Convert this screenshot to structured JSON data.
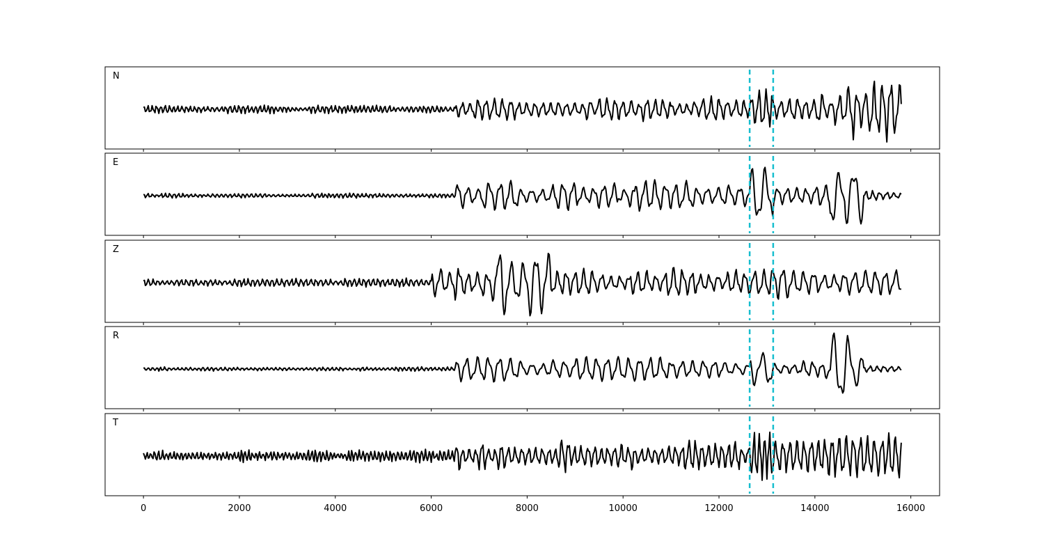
{
  "chart_data": {
    "type": "line",
    "title": "",
    "xlabel": "",
    "ylabel": "",
    "xlim": [
      -800,
      16600
    ],
    "xticks": [
      0,
      2000,
      4000,
      6000,
      8000,
      10000,
      12000,
      14000,
      16000
    ],
    "xtick_labels": [
      "0",
      "2000",
      "4000",
      "6000",
      "8000",
      "10000",
      "12000",
      "14000",
      "16000"
    ],
    "x_range": [
      0,
      15800
    ],
    "grid": false,
    "legend": "none",
    "trace_color": "#000000",
    "pick_color": "#17becf",
    "picks": [
      12640,
      13130
    ],
    "series": [
      {
        "name": "N",
        "envelope": [
          {
            "from": 0,
            "to": 6500,
            "amp": 0.1,
            "period": 90
          },
          {
            "from": 6500,
            "to": 12640,
            "amp": 0.3,
            "period": 170
          },
          {
            "from": 12640,
            "to": 13130,
            "amp": 0.85,
            "period": 150
          },
          {
            "from": 13130,
            "to": 14400,
            "amp": 0.4,
            "period": 170
          },
          {
            "from": 14400,
            "to": 15800,
            "amp": 0.75,
            "period": 180
          }
        ]
      },
      {
        "name": "E",
        "envelope": [
          {
            "from": 0,
            "to": 6500,
            "amp": 0.06,
            "period": 90
          },
          {
            "from": 6500,
            "to": 12640,
            "amp": 0.35,
            "period": 220
          },
          {
            "from": 12640,
            "to": 13130,
            "amp": 0.9,
            "period": 300
          },
          {
            "from": 13130,
            "to": 14300,
            "amp": 0.3,
            "period": 200
          },
          {
            "from": 14300,
            "to": 15000,
            "amp": 0.85,
            "period": 320
          },
          {
            "from": 15000,
            "to": 15800,
            "amp": 0.15,
            "period": 150
          }
        ]
      },
      {
        "name": "Z",
        "envelope": [
          {
            "from": 0,
            "to": 6000,
            "amp": 0.1,
            "period": 100
          },
          {
            "from": 6000,
            "to": 7200,
            "amp": 0.45,
            "period": 200
          },
          {
            "from": 7200,
            "to": 8500,
            "amp": 0.9,
            "period": 260
          },
          {
            "from": 8500,
            "to": 12640,
            "amp": 0.35,
            "period": 190
          },
          {
            "from": 12640,
            "to": 13130,
            "amp": 0.4,
            "period": 200
          },
          {
            "from": 13130,
            "to": 15800,
            "amp": 0.45,
            "period": 220
          }
        ]
      },
      {
        "name": "R",
        "envelope": [
          {
            "from": 0,
            "to": 6500,
            "amp": 0.05,
            "period": 90
          },
          {
            "from": 6500,
            "to": 12640,
            "amp": 0.3,
            "period": 230
          },
          {
            "from": 12640,
            "to": 13130,
            "amp": 0.85,
            "period": 300
          },
          {
            "from": 13130,
            "to": 14300,
            "amp": 0.25,
            "period": 200
          },
          {
            "from": 14300,
            "to": 15000,
            "amp": 0.85,
            "period": 320
          },
          {
            "from": 15000,
            "to": 15800,
            "amp": 0.1,
            "period": 150
          }
        ]
      },
      {
        "name": "T",
        "envelope": [
          {
            "from": 0,
            "to": 6500,
            "amp": 0.15,
            "period": 80
          },
          {
            "from": 6500,
            "to": 12640,
            "amp": 0.4,
            "period": 140
          },
          {
            "from": 12640,
            "to": 13130,
            "amp": 0.9,
            "period": 110
          },
          {
            "from": 13130,
            "to": 15800,
            "amp": 0.6,
            "period": 150
          }
        ]
      }
    ]
  }
}
